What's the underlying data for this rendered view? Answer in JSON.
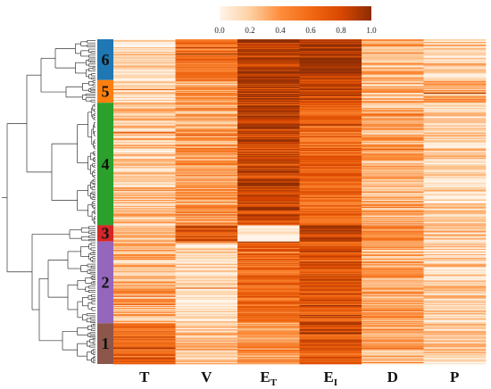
{
  "chart_data": {
    "type": "heatmap",
    "title": "",
    "colorbar": {
      "min": 0.0,
      "max": 1.0,
      "ticks": [
        "0.0",
        "0.2",
        "0.4",
        "0.6",
        "0.8",
        "1.0"
      ],
      "colors": [
        "#fff5eb",
        "#fdd0a2",
        "#fd8d3c",
        "#f16913",
        "#d94801",
        "#8c2d04"
      ]
    },
    "columns": [
      {
        "main": "T",
        "sub": ""
      },
      {
        "main": "V",
        "sub": ""
      },
      {
        "main": "E",
        "sub": "T"
      },
      {
        "main": "E",
        "sub": "I"
      },
      {
        "main": "D",
        "sub": ""
      },
      {
        "main": "P",
        "sub": ""
      }
    ],
    "clusters": [
      {
        "label": "6",
        "color": "#1f77b4",
        "rows": 45,
        "means": [
          0.12,
          0.55,
          0.85,
          0.92,
          0.3,
          0.12
        ]
      },
      {
        "label": "5",
        "color": "#ff7f0e",
        "rows": 25,
        "means": [
          0.15,
          0.4,
          0.85,
          0.8,
          0.3,
          0.35
        ]
      },
      {
        "label": "4",
        "color": "#2ca02c",
        "rows": 135,
        "means": [
          0.2,
          0.35,
          0.8,
          0.6,
          0.3,
          0.15
        ]
      },
      {
        "label": "3",
        "color": "#d62728",
        "rows": 18,
        "means": [
          0.25,
          0.75,
          0.05,
          0.9,
          0.45,
          0.2
        ]
      },
      {
        "label": "2",
        "color": "#9467bd",
        "rows": 90,
        "means": [
          0.3,
          0.12,
          0.6,
          0.7,
          0.3,
          0.15
        ]
      },
      {
        "label": "1",
        "color": "#8c564b",
        "rows": 45,
        "means": [
          0.6,
          0.2,
          0.4,
          0.7,
          0.3,
          0.2
        ]
      }
    ]
  }
}
